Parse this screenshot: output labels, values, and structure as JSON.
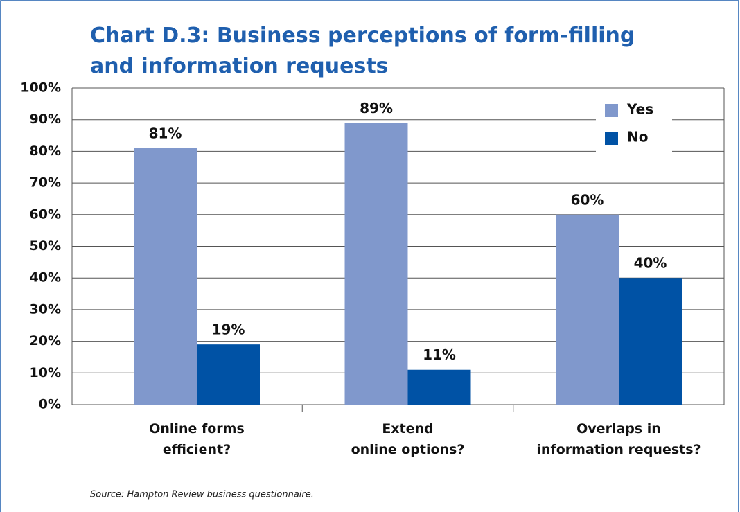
{
  "chart_data": {
    "type": "bar",
    "title": "Chart D.3: Business perceptions of form-filling\nand information requests",
    "categories": [
      "Online forms\nefficient?",
      "Extend\nonline options?",
      "Overlaps in\ninformation requests?"
    ],
    "series": [
      {
        "name": "Yes",
        "color": "#8098cc",
        "values": [
          81,
          89,
          60
        ],
        "value_labels": [
          "81%",
          "89%",
          "60%"
        ]
      },
      {
        "name": "No",
        "color": "#0052a5",
        "values": [
          19,
          11,
          40
        ],
        "value_labels": [
          "19%",
          "11%",
          "40%"
        ]
      }
    ],
    "ylim": [
      0,
      100
    ],
    "yticks": [
      {
        "value": 0,
        "label": "0%"
      },
      {
        "value": 10,
        "label": "10%"
      },
      {
        "value": 20,
        "label": "20%"
      },
      {
        "value": 30,
        "label": "30%"
      },
      {
        "value": 40,
        "label": "40%"
      },
      {
        "value": 50,
        "label": "50%"
      },
      {
        "value": 60,
        "label": "60%"
      },
      {
        "value": 70,
        "label": "70%"
      },
      {
        "value": 80,
        "label": "80%"
      },
      {
        "value": 90,
        "label": "90%"
      },
      {
        "value": 100,
        "label": "100%"
      }
    ],
    "grid": true,
    "legend": "upper right",
    "source": "Source: Hampton Review business questionnaire."
  }
}
